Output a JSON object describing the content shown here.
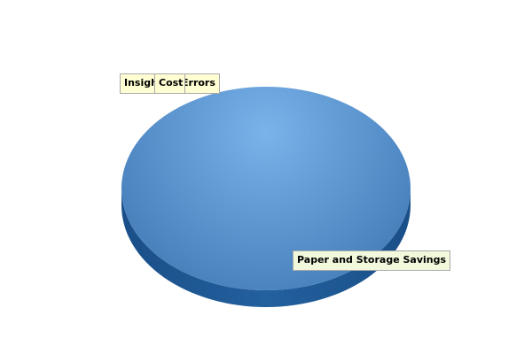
{
  "chart_data": {
    "type": "pie",
    "style": "3d",
    "title": "",
    "slices": [
      {
        "label": "Insight",
        "value": 0
      },
      {
        "label": "Cost",
        "value": 0
      },
      {
        "label": "Errors",
        "value": 0
      },
      {
        "label": "Paper and Storage Savings",
        "value": 100
      }
    ],
    "colors": {
      "top_light": "#7ab2ea",
      "top_dark": "#3f78b4",
      "side": "#23609e",
      "side_dark": "#1a4f88",
      "label_bg": "#fffed2",
      "label_bg_alt": "#f1f8dc",
      "label_border": "#a9a9a9"
    }
  }
}
